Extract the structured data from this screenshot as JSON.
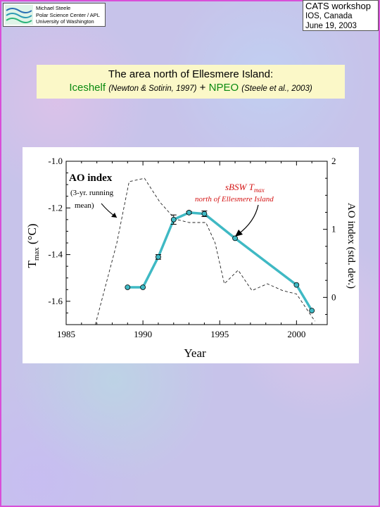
{
  "header": {
    "author_lines": [
      "Michael Steele",
      "Polar Science Center / APL",
      "University of Washington"
    ],
    "workshop_lines": [
      "CATS workshop",
      "IOS, Canada",
      "June 19, 2003"
    ]
  },
  "title": {
    "line1": "The area north of Ellesmere Island:",
    "iceshelf": "Iceshelf",
    "iceshelf_cite": "(Newton & Sotirin, 1997)",
    "plus": "+",
    "npeo": "NPEO",
    "npeo_cite": "(Steele et al., 2003)"
  },
  "colors": {
    "frame": "#d84fd8",
    "series_tmax": "#3fb9c4",
    "title_bg": "#fbf8c8",
    "green_text": "#0a8a10"
  },
  "chart_data": {
    "type": "line",
    "xlabel": "Year",
    "ylabel_left": "T_max (°C)",
    "ylabel_right": "AO index (std. dev.)",
    "xlim": [
      1985,
      2002
    ],
    "ylim_left": [
      -1.7,
      -1.0
    ],
    "ylim_right": [
      -0.4,
      2.0
    ],
    "xticks": [
      1985,
      1990,
      1995,
      2000
    ],
    "yticks_left": [
      -1.0,
      -1.2,
      -1.4,
      -1.6
    ],
    "ytick_labels_left": [
      "-1.0",
      "-1.2",
      "-1.4",
      "-1.6"
    ],
    "yticks_right": [
      0,
      1,
      2
    ],
    "ytick_labels_right": [
      "0",
      "1",
      "2"
    ],
    "annotations": {
      "ao_title": "AO index",
      "ao_note_1": "(3-yr. running",
      "ao_note_2": "mean)",
      "sbsw_main": "sBSW T",
      "sbsw_sub": "max",
      "sbsw_location": "north of Ellesmere Island"
    },
    "series": [
      {
        "key": "tmax",
        "axis": "left",
        "style": "solid-markers",
        "x": [
          1989,
          1990,
          1991,
          1992,
          1993,
          1994,
          1996,
          2000,
          2001
        ],
        "y": [
          -1.54,
          -1.54,
          -1.41,
          -1.25,
          -1.22,
          -1.225,
          -1.33,
          -1.53,
          -1.64
        ],
        "err": [
          0,
          0,
          0.01,
          0.02,
          0.005,
          0.012,
          0,
          0,
          0
        ]
      },
      {
        "key": "ao",
        "axis": "right",
        "style": "dashed",
        "x": [
          1986.9,
          1988.3,
          1989.1,
          1990.1,
          1991.1,
          1992.1,
          1993.0,
          1994.1,
          1994.7,
          1995.3,
          1996.2,
          1997.1,
          1998.1,
          1999.1,
          2000.0,
          2000.9,
          2001.2
        ],
        "y": [
          -0.4,
          0.8,
          1.7,
          1.75,
          1.4,
          1.15,
          1.1,
          1.1,
          0.8,
          0.2,
          0.4,
          0.1,
          0.2,
          0.1,
          0.05,
          -0.25,
          -0.35
        ]
      }
    ]
  }
}
